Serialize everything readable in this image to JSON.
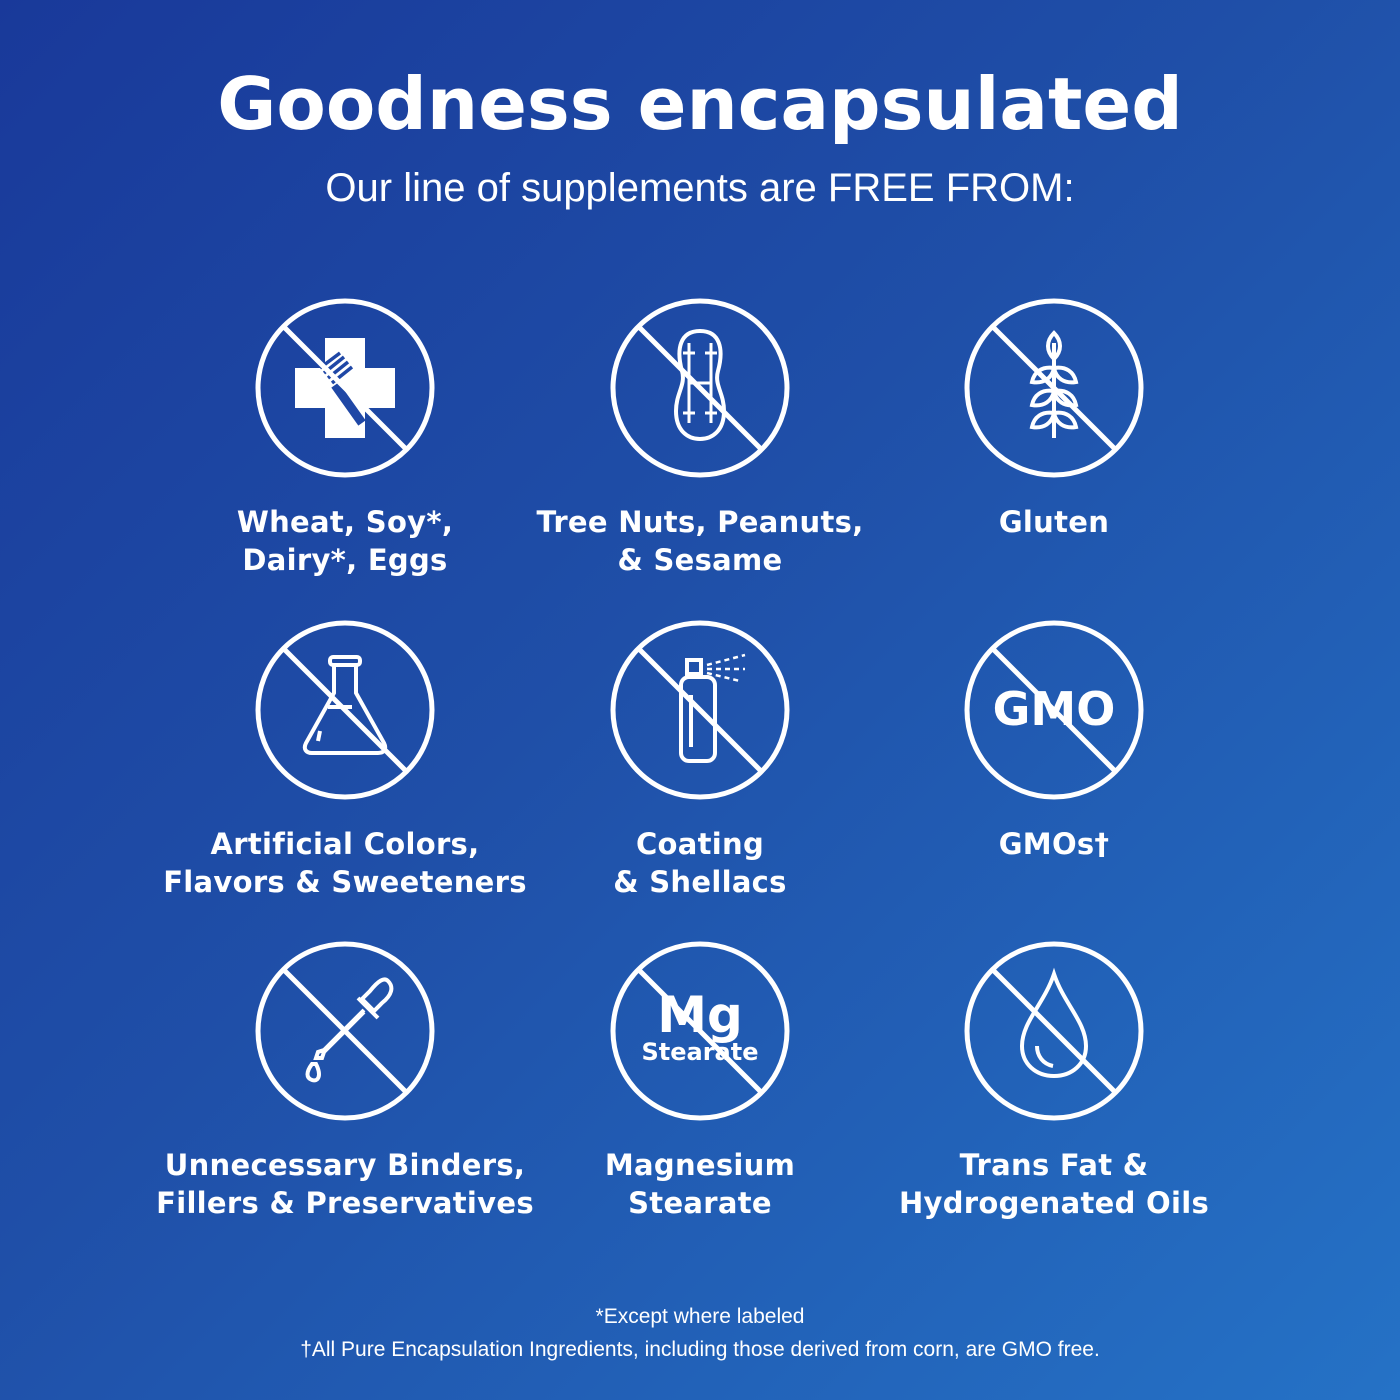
{
  "header": {
    "title": "Goodness encapsulated",
    "subtitle": "Our line of supplements are FREE FROM:"
  },
  "items": [
    {
      "icon": "allergen-cross-fork-icon",
      "line1": "Wheat, Soy*,",
      "line2": "Dairy*, Eggs"
    },
    {
      "icon": "peanut-icon",
      "line1": "Tree Nuts, Peanuts,",
      "line2": "& Sesame"
    },
    {
      "icon": "wheat-icon",
      "line1": "Gluten",
      "line2": ""
    },
    {
      "icon": "flask-icon",
      "line1": "Artificial Colors,",
      "line2": "Flavors & Sweeteners"
    },
    {
      "icon": "spray-can-icon",
      "line1": "Coating",
      "line2": "& Shellacs"
    },
    {
      "icon": "gmo-icon",
      "icon_text": "GMO",
      "line1": "GMOs†",
      "line2": ""
    },
    {
      "icon": "dropper-icon",
      "line1": "Unnecessary Binders,",
      "line2": "Fillers & Preservatives"
    },
    {
      "icon": "mg-stearate-icon",
      "icon_text": "Mg",
      "icon_subtext": "Stearate",
      "line1": "Magnesium",
      "line2": "Stearate"
    },
    {
      "icon": "oil-drop-icon",
      "line1": "Trans Fat &",
      "line2": "Hydrogenated Oils"
    }
  ],
  "footer": {
    "note1": "*Except where labeled",
    "note2": "†All Pure Encapsulation Ingredients, including those derived from corn, are GMO free."
  },
  "colors": {
    "background_start": "#19399a",
    "background_end": "#2572c6",
    "foreground": "#ffffff"
  }
}
